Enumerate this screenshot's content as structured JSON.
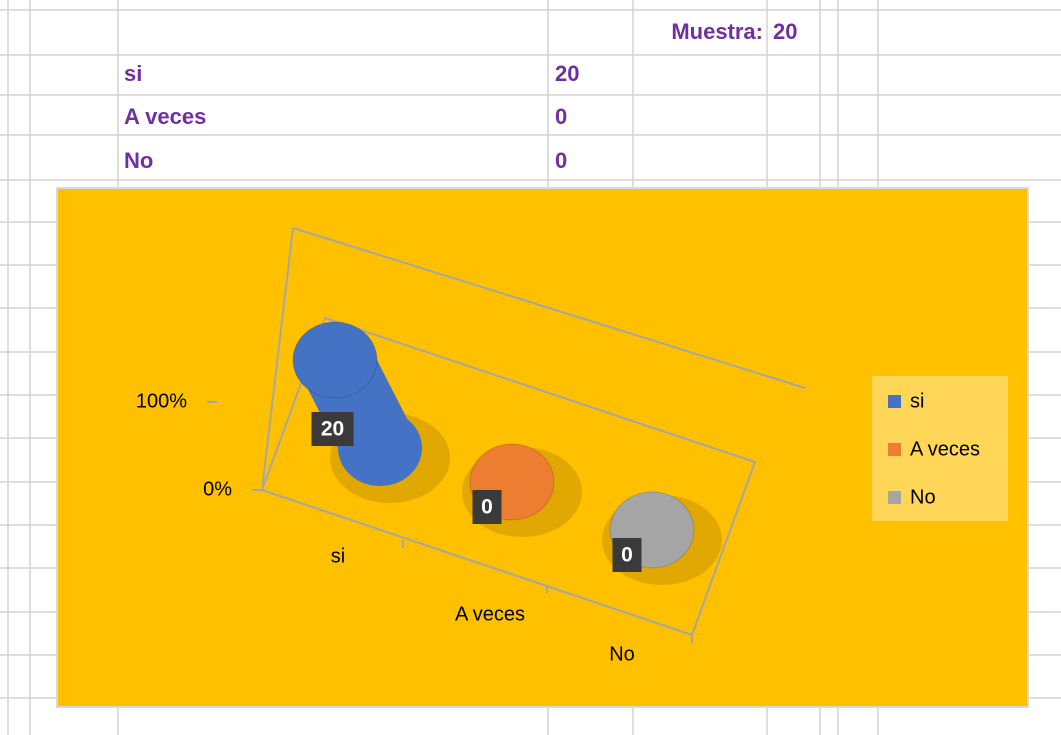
{
  "sheet": {
    "sample_label": "Muestra:",
    "sample_value": 20,
    "rows": [
      [
        "si",
        20
      ],
      [
        "A veces",
        0
      ],
      [
        "No",
        0
      ]
    ]
  },
  "chart_data": {
    "type": "bar",
    "stacked": "percent",
    "three_d": "cylinder",
    "categories": [
      "si",
      "A veces",
      "No"
    ],
    "series": [
      {
        "name": "si",
        "color": "#4472c4",
        "values": [
          20,
          null,
          null
        ]
      },
      {
        "name": "A veces",
        "color": "#ed7d31",
        "values": [
          null,
          0,
          null
        ]
      },
      {
        "name": "No",
        "color": "#a5a5a5",
        "values": [
          null,
          null,
          0
        ]
      }
    ],
    "ylim": [
      0,
      100
    ],
    "yticks": [
      {
        "value": 0,
        "label": "0%"
      },
      {
        "value": 100,
        "label": "100%"
      }
    ],
    "legend": "right",
    "background": "#ffc000"
  }
}
